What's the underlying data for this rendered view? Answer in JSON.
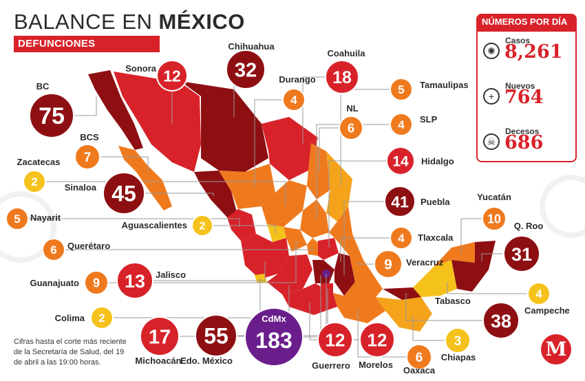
{
  "header": {
    "title_main": "BALANCE EN",
    "title_bold": "MÉXICO",
    "subtitle": "DEFUNCIONES"
  },
  "panel": {
    "title": "NÚMEROS POR DÍA",
    "stats": [
      {
        "label": "Casos",
        "value": "8,261",
        "icon": "virus-icon"
      },
      {
        "label": "Nuevos",
        "value": "764",
        "icon": "plus-icon"
      },
      {
        "label": "Decesos",
        "value": "686",
        "icon": "skull-icon"
      }
    ]
  },
  "note": "Cifras hasta el corte más reciente de la Secretaría de Salud, del 19 de abril a las 19:00 horas.",
  "logo": "M",
  "colors": {
    "dark_red": "#8e0f12",
    "red": "#d8222a",
    "orange": "#ef7a1e",
    "yellow": "#f5c21b",
    "purple": "#6a1e8c"
  },
  "states": [
    {
      "name": "BC",
      "value": "75",
      "level": "dark"
    },
    {
      "name": "Sonora",
      "value": "12",
      "level": "red"
    },
    {
      "name": "Chihuahua",
      "value": "32",
      "level": "dark"
    },
    {
      "name": "Coahuila",
      "value": "18",
      "level": "red"
    },
    {
      "name": "Durango",
      "value": "4",
      "level": "orange"
    },
    {
      "name": "Tamaulipas",
      "value": "5",
      "level": "orange"
    },
    {
      "name": "NL",
      "value": "6",
      "level": "orange"
    },
    {
      "name": "BCS",
      "value": "7",
      "level": "orange"
    },
    {
      "name": "SLP",
      "value": "4",
      "level": "orange"
    },
    {
      "name": "Zacatecas",
      "value": "2",
      "level": "yellow"
    },
    {
      "name": "Hidalgo",
      "value": "14",
      "level": "red"
    },
    {
      "name": "Sinaloa",
      "value": "45",
      "level": "dark"
    },
    {
      "name": "Puebla",
      "value": "41",
      "level": "dark"
    },
    {
      "name": "Nayarit",
      "value": "5",
      "level": "orange"
    },
    {
      "name": "Yucatán",
      "value": "10",
      "level": "orange"
    },
    {
      "name": "Aguascalientes",
      "value": "2",
      "level": "yellow"
    },
    {
      "name": "Tlaxcala",
      "value": "4",
      "level": "orange"
    },
    {
      "name": "Q. Roo",
      "value": "31",
      "level": "dark"
    },
    {
      "name": "Querétaro",
      "value": "6",
      "level": "orange"
    },
    {
      "name": "Veracruz",
      "value": "9",
      "level": "orange"
    },
    {
      "name": "Guanajuato",
      "value": "9",
      "level": "orange"
    },
    {
      "name": "Jalisco",
      "value": "13",
      "level": "red"
    },
    {
      "name": "Campeche",
      "value": "4",
      "level": "yellow"
    },
    {
      "name": "Tabasco",
      "value": "38",
      "level": "dark"
    },
    {
      "name": "Colima",
      "value": "2",
      "level": "yellow"
    },
    {
      "name": "CdMx",
      "value": "183",
      "level": "purple"
    },
    {
      "name": "Michoacán",
      "value": "17",
      "level": "red"
    },
    {
      "name": "Edo. México",
      "value": "55",
      "level": "dark"
    },
    {
      "name": "Guerrero",
      "value": "12",
      "level": "red"
    },
    {
      "name": "Morelos",
      "value": "12",
      "level": "red"
    },
    {
      "name": "Oaxaca",
      "value": "6",
      "level": "orange"
    },
    {
      "name": "Chiapas",
      "value": "3",
      "level": "yellow"
    }
  ]
}
